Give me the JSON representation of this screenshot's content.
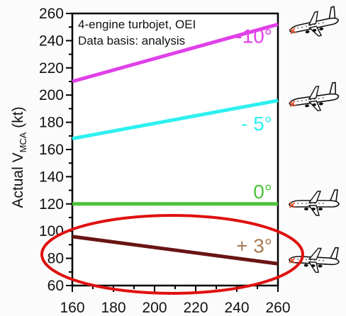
{
  "chart_data": {
    "type": "line",
    "x": [
      160,
      260
    ],
    "xlim": [
      160,
      260
    ],
    "ylim": [
      60,
      260
    ],
    "xticks": [
      160,
      180,
      200,
      220,
      240,
      260
    ],
    "yticks": [
      60,
      80,
      100,
      120,
      140,
      160,
      180,
      200,
      220,
      240,
      260
    ],
    "ylabel": {
      "main": "Actual V",
      "sub": "MCA",
      "unit": " (kt)"
    },
    "xlabel": "",
    "annotations": [
      "4-engine turbojet, OEI",
      "Data basis: analysis"
    ],
    "grid": false,
    "series": [
      {
        "name": "-10°",
        "values": [
          210,
          252
        ],
        "color": "#e040e8"
      },
      {
        "name": "- 5°",
        "values": [
          168,
          196
        ],
        "color": "#2ef0f0"
      },
      {
        "name": "0°",
        "values": [
          120,
          120
        ],
        "color": "#4cc23a"
      },
      {
        "name": "+ 3°",
        "values": [
          96,
          76
        ],
        "color": "#6a1414",
        "label_color": "#a87a52"
      }
    ],
    "highlight": {
      "shape": "ellipse",
      "color": "#e01010",
      "around": "+ 3°"
    },
    "icons": [
      "airplane-icon",
      "airplane-icon",
      "airplane-icon",
      "airplane-icon"
    ],
    "icon_marker_color": "#e8502a"
  }
}
